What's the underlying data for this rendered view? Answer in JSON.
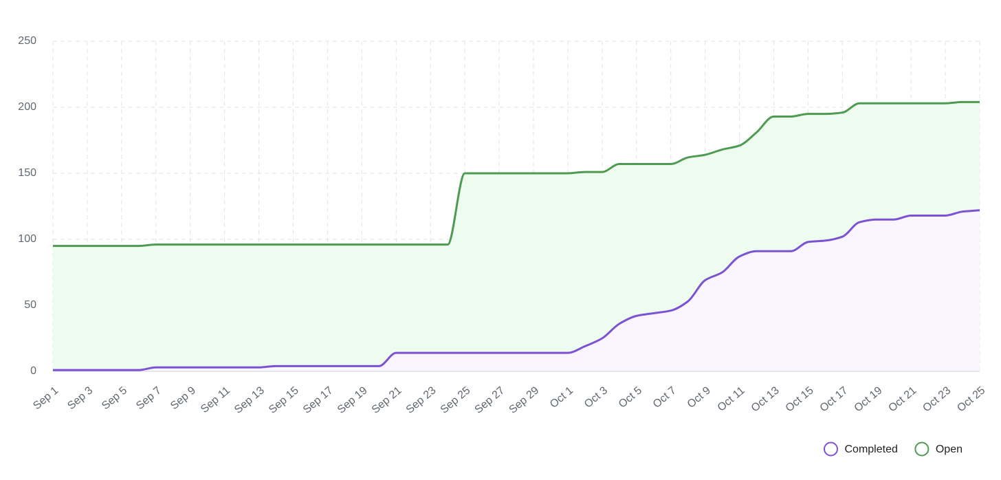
{
  "chart_data": {
    "type": "area",
    "categories": [
      "Sep 1",
      null,
      "Sep 3",
      null,
      "Sep 5",
      null,
      "Sep 7",
      null,
      "Sep 9",
      null,
      "Sep 11",
      null,
      "Sep 13",
      null,
      "Sep 15",
      null,
      "Sep 17",
      null,
      "Sep 19",
      null,
      "Sep 21",
      null,
      "Sep 23",
      null,
      "Sep 25",
      null,
      "Sep 27",
      null,
      "Sep 29",
      null,
      "Oct 1",
      null,
      "Oct 3",
      null,
      "Oct 5",
      null,
      "Oct 7",
      null,
      "Oct 9",
      null,
      "Oct 11",
      null,
      "Oct 13",
      null,
      "Oct 15",
      null,
      "Oct 17",
      null,
      "Oct 19",
      null,
      "Oct 21",
      null,
      "Oct 23",
      null,
      "Oct 25"
    ],
    "series": [
      {
        "name": "Completed",
        "color": "#7b52d1",
        "fill": "#faf5fe",
        "values": [
          1,
          1,
          1,
          1,
          1,
          1,
          3,
          3,
          3,
          3,
          3,
          3,
          3,
          4,
          4,
          4,
          4,
          4,
          4,
          4,
          14,
          14,
          14,
          14,
          14,
          14,
          14,
          14,
          14,
          14,
          14,
          19,
          25,
          36,
          42,
          44,
          46,
          53,
          69,
          75,
          87,
          91,
          91,
          91,
          98,
          99,
          102,
          113,
          115,
          115,
          118,
          118,
          118,
          121,
          122
        ]
      },
      {
        "name": "Open",
        "color": "#4e9a52",
        "fill": "#eefcef",
        "values": [
          95,
          95,
          95,
          95,
          95,
          95,
          96,
          96,
          96,
          96,
          96,
          96,
          96,
          96,
          96,
          96,
          96,
          96,
          96,
          96,
          96,
          96,
          96,
          96,
          150,
          150,
          150,
          150,
          150,
          150,
          150,
          151,
          151,
          157,
          157,
          157,
          157,
          162,
          164,
          168,
          171,
          181,
          193,
          193,
          195,
          195,
          196,
          203,
          203,
          203,
          203,
          203,
          203,
          204,
          204
        ]
      }
    ],
    "ylim": [
      0,
      250
    ],
    "yticks": [
      0,
      50,
      100,
      150,
      200,
      250
    ],
    "grid": true,
    "legend": "bottom-right"
  }
}
